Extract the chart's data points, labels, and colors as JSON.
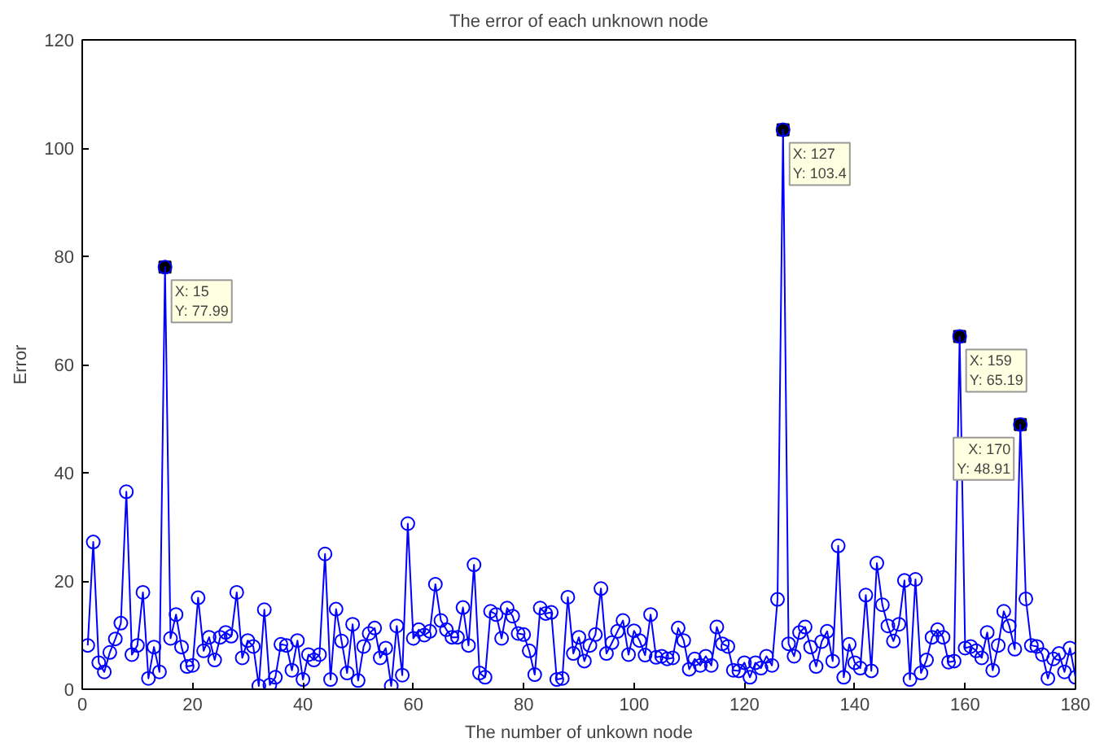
{
  "chart_data": {
    "type": "line",
    "title": "The error of each unknown node",
    "xlabel": "The number of unkown node",
    "ylabel": "Error",
    "x": [
      1,
      2,
      3,
      4,
      5,
      6,
      7,
      8,
      9,
      10,
      11,
      12,
      13,
      14,
      15,
      16,
      17,
      18,
      19,
      20,
      21,
      22,
      23,
      24,
      25,
      26,
      27,
      28,
      29,
      30,
      31,
      32,
      33,
      34,
      35,
      36,
      37,
      38,
      39,
      40,
      41,
      42,
      43,
      44,
      45,
      46,
      47,
      48,
      49,
      50,
      51,
      52,
      53,
      54,
      55,
      56,
      57,
      58,
      59,
      60,
      61,
      62,
      63,
      64,
      65,
      66,
      67,
      68,
      69,
      70,
      71,
      72,
      73,
      74,
      75,
      76,
      77,
      78,
      79,
      80,
      81,
      82,
      83,
      84,
      85,
      86,
      87,
      88,
      89,
      90,
      91,
      92,
      93,
      94,
      95,
      96,
      97,
      98,
      99,
      100,
      101,
      102,
      103,
      104,
      105,
      106,
      107,
      108,
      109,
      110,
      111,
      112,
      113,
      114,
      115,
      116,
      117,
      118,
      119,
      120,
      121,
      122,
      123,
      124,
      125,
      126,
      127,
      128,
      129,
      130,
      131,
      132,
      133,
      134,
      135,
      136,
      137,
      138,
      139,
      140,
      141,
      142,
      143,
      144,
      145,
      146,
      147,
      148,
      149,
      150,
      151,
      152,
      153,
      154,
      155,
      156,
      157,
      158,
      159,
      160,
      161,
      162,
      163,
      164,
      165,
      166,
      167,
      168,
      169,
      170,
      171,
      172,
      173,
      174,
      175,
      176,
      177,
      178,
      179,
      180
    ],
    "series": [
      {
        "color": "#0000ff",
        "values": [
          8.1,
          27.2,
          4.9,
          3.2,
          6.8,
          9.3,
          12.2,
          36.5,
          6.4,
          8.1,
          17.9,
          2,
          7.8,
          3.2,
          77.99,
          9.4,
          13.8,
          7.8,
          4.2,
          4.4,
          16.9,
          7.1,
          9.6,
          5.4,
          9.6,
          10.5,
          9.8,
          17.9,
          5.8,
          9,
          7.9,
          0.6,
          14.7,
          0.8,
          2.2,
          8.3,
          8.1,
          3.5,
          9,
          1.8,
          6.4,
          5.4,
          6.4,
          25,
          1.8,
          14.8,
          8.9,
          3,
          12,
          1.6,
          7.9,
          10.3,
          11.3,
          5.8,
          7.6,
          0.6,
          11.7,
          2.6,
          30.6,
          9.4,
          11,
          10,
          10.7,
          19.4,
          12.7,
          11,
          9.6,
          9.6,
          15.1,
          8.1,
          23,
          3,
          2.2,
          14.4,
          13.8,
          9.4,
          15,
          13.5,
          10.3,
          10.1,
          7.1,
          2.7,
          15,
          14,
          14.2,
          1.8,
          2,
          17,
          6.6,
          9.6,
          5.2,
          8.1,
          10.1,
          18.6,
          6.6,
          8.6,
          10.7,
          12.7,
          6.4,
          10.8,
          9,
          6.3,
          13.8,
          5.9,
          6.1,
          5.6,
          5.8,
          11.3,
          9,
          3.7,
          5.6,
          4.4,
          6.1,
          4.4,
          11.5,
          8.4,
          7.9,
          3.5,
          3.4,
          4.9,
          2.2,
          4.9,
          3.9,
          6.1,
          4.4,
          16.6,
          103.4,
          8.4,
          6.1,
          10.5,
          11.5,
          7.8,
          4.2,
          8.8,
          10.7,
          5.2,
          26.5,
          2.2,
          8.3,
          4.9,
          3.9,
          17.4,
          3.4,
          23.3,
          15.6,
          11.7,
          8.9,
          12,
          20.1,
          1.8,
          20.3,
          3,
          5.4,
          9.6,
          11,
          9.6,
          5,
          5.2,
          65.19,
          7.6,
          7.9,
          7.1,
          5.8,
          10.5,
          3.5,
          8.1,
          14.4,
          11.7,
          7.4,
          48.91,
          16.7,
          8.1,
          7.9,
          6.4,
          2,
          5.6,
          6.6,
          3.2,
          7.6,
          2.2
        ]
      }
    ],
    "xlim": [
      0,
      180
    ],
    "ylim": [
      0,
      120
    ],
    "xticks": [
      0,
      20,
      40,
      60,
      80,
      100,
      120,
      140,
      160,
      180
    ],
    "yticks": [
      0,
      20,
      40,
      60,
      80,
      100,
      120
    ],
    "marker": "circle",
    "line_style": "solid",
    "annotations": [
      {
        "text": "X: 15\nY: 77.99",
        "x": 15,
        "y": 77.99
      },
      {
        "text": "X: 127\nY: 103.4",
        "x": 127,
        "y": 103.4
      },
      {
        "text": "X: 159\nY: 65.19",
        "x": 159,
        "y": 65.19
      },
      {
        "text": "X: 170\nY: 48.91",
        "x": 170,
        "y": 48.91
      }
    ]
  }
}
